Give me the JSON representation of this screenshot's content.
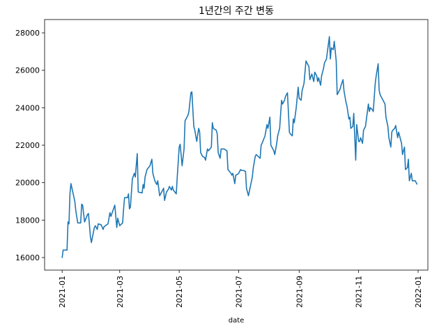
{
  "chart_data": {
    "type": "line",
    "title": "1년간의 주간 변동",
    "x_label": "date",
    "color": "#1f77b4",
    "x": [
      0,
      1,
      5,
      6,
      7,
      8,
      9,
      13,
      14,
      16,
      19,
      20,
      21,
      23,
      26,
      27,
      29,
      30,
      33,
      34,
      36,
      37,
      40,
      42,
      43,
      47,
      49,
      50,
      54,
      56,
      57,
      59,
      62,
      63,
      64,
      67,
      68,
      69,
      70,
      72,
      74,
      75,
      77,
      78,
      82,
      83,
      84,
      85,
      87,
      90,
      92,
      93,
      95,
      97,
      98,
      100,
      102,
      104,
      105,
      107,
      109,
      110,
      112,
      113,
      114,
      117,
      118,
      120,
      121,
      123,
      125,
      126,
      129,
      130,
      132,
      133,
      135,
      136,
      138,
      140,
      141,
      142,
      144,
      146,
      147,
      149,
      150,
      153,
      154,
      155,
      158,
      159,
      160,
      162,
      163,
      166,
      169,
      170,
      173,
      174,
      175,
      177,
      178,
      180,
      181,
      183,
      184,
      186,
      188,
      189,
      191,
      193,
      195,
      196,
      198,
      199,
      201,
      203,
      204,
      205,
      208,
      210,
      211,
      213,
      214,
      216,
      217,
      218,
      220,
      221,
      223,
      225,
      226,
      228,
      229,
      231,
      233,
      234,
      236,
      237,
      238,
      240,
      242,
      243,
      245,
      246,
      248,
      250,
      251,
      253,
      254,
      256,
      258,
      259,
      261,
      262,
      263,
      265,
      266,
      268,
      269,
      271,
      272,
      274,
      275,
      276,
      278,
      279,
      281,
      282,
      284,
      285,
      286,
      288,
      289,
      291,
      292,
      294,
      295,
      296,
      298,
      299,
      301,
      302,
      304,
      305,
      306,
      308,
      309,
      311,
      312,
      314,
      315,
      316,
      318,
      319,
      321,
      322,
      324,
      325,
      326,
      328,
      329,
      331,
      332,
      334,
      335,
      337,
      338,
      339,
      341,
      342,
      344,
      345,
      347,
      348,
      349,
      351,
      352,
      354,
      355,
      356,
      358,
      359,
      362,
      364
    ],
    "values": [
      15980,
      16400,
      16400,
      17900,
      17800,
      19400,
      19950,
      19000,
      18500,
      17850,
      17850,
      18850,
      18800,
      17900,
      18300,
      18350,
      17100,
      16800,
      17600,
      17700,
      17500,
      17800,
      17750,
      17500,
      17650,
      17800,
      18400,
      18200,
      18800,
      17600,
      18100,
      17700,
      17850,
      18600,
      19200,
      19200,
      19400,
      18600,
      18700,
      20200,
      20500,
      20300,
      21550,
      19500,
      19450,
      19900,
      19700,
      20300,
      20700,
      20900,
      21250,
      20500,
      20100,
      19900,
      20100,
      19300,
      19500,
      19700,
      19050,
      19500,
      19650,
      19800,
      19600,
      19800,
      19600,
      19400,
      20300,
      21900,
      22050,
      20900,
      21800,
      23300,
      23600,
      23800,
      24800,
      24850,
      23000,
      22800,
      22200,
      22900,
      22700,
      21600,
      21400,
      21350,
      21200,
      21800,
      21700,
      21900,
      23200,
      22900,
      22800,
      22600,
      21600,
      21300,
      21800,
      21800,
      21700,
      20700,
      20500,
      20400,
      20500,
      19950,
      20400,
      20450,
      20500,
      20700,
      20650,
      20650,
      20600,
      19700,
      19300,
      19800,
      20300,
      20800,
      21400,
      21500,
      21400,
      21300,
      22000,
      22100,
      22500,
      23100,
      22900,
      23500,
      22000,
      21800,
      21700,
      21500,
      22100,
      22500,
      22900,
      24400,
      24200,
      24400,
      24600,
      24800,
      22700,
      22600,
      22500,
      23400,
      23200,
      24000,
      25100,
      24500,
      24400,
      24900,
      25300,
      26500,
      26400,
      26200,
      25500,
      25800,
      25400,
      25900,
      25700,
      25400,
      25600,
      25200,
      25700,
      26100,
      26400,
      26600,
      27000,
      27800,
      26600,
      27200,
      27100,
      27550,
      26500,
      24700,
      24900,
      25000,
      25200,
      25500,
      24900,
      24300,
      24100,
      23400,
      23500,
      22900,
      23000,
      23700,
      21200,
      23100,
      22200,
      22200,
      22400,
      22100,
      22800,
      23000,
      23400,
      24200,
      23800,
      24000,
      23900,
      23800,
      25300,
      25700,
      26350,
      24950,
      24700,
      24500,
      24400,
      24200,
      23500,
      23000,
      22400,
      21900,
      22700,
      22800,
      22900,
      23050,
      22400,
      22700,
      22300,
      22100,
      21500,
      21900,
      20700,
      20800,
      21250,
      20100,
      20500,
      20100,
      20100,
      19900
    ],
    "xlim": [
      -18,
      375
    ],
    "xticks": [
      {
        "value": 0,
        "label": "2021-01"
      },
      {
        "value": 59,
        "label": "2021-03"
      },
      {
        "value": 120,
        "label": "2021-05"
      },
      {
        "value": 181,
        "label": "2021-07"
      },
      {
        "value": 243,
        "label": "2021-09"
      },
      {
        "value": 304,
        "label": "2021-11"
      },
      {
        "value": 365,
        "label": "2022-01"
      }
    ],
    "ylim": [
      15330,
      28710
    ],
    "yticks": [
      16000,
      18000,
      20000,
      22000,
      24000,
      26000,
      28000
    ]
  }
}
